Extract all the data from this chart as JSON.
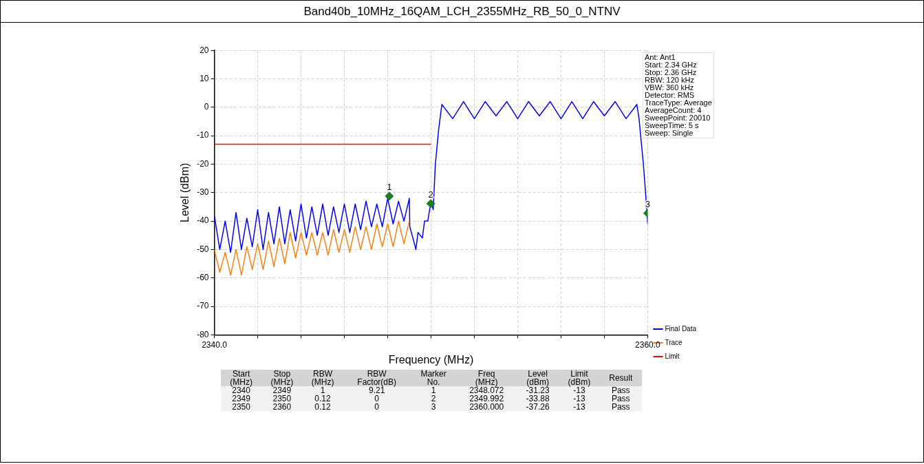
{
  "chart_data": {
    "type": "line",
    "title": "Band40b_10MHz_16QAM_LCH_2355MHz_RB_50_0_NTNV",
    "xlabel": "Frequency (MHz)",
    "ylabel": "Level (dBm)",
    "xlim": [
      2340,
      2360
    ],
    "xticks": [
      {
        "value": 2340,
        "label": "2340.0"
      },
      {
        "value": 2342,
        "label": null
      },
      {
        "value": 2344,
        "label": null
      },
      {
        "value": 2346,
        "label": null
      },
      {
        "value": 2348,
        "label": null
      },
      {
        "value": 2350,
        "label": null
      },
      {
        "value": 2352,
        "label": null
      },
      {
        "value": 2354,
        "label": null
      },
      {
        "value": 2356,
        "label": null
      },
      {
        "value": 2358,
        "label": null
      },
      {
        "value": 2360,
        "label": "2360.0"
      }
    ],
    "ylim": [
      -80,
      20
    ],
    "yticks": [
      -80,
      -70,
      -60,
      -50,
      -40,
      -30,
      -20,
      -10,
      0,
      10,
      20
    ],
    "grid": true,
    "legend": "bottom right",
    "series": [
      {
        "name": "Final Data",
        "color": "#0000ff",
        "marker": "none",
        "x": [
          2340,
          2340.25,
          2340.5,
          2340.75,
          2341,
          2341.25,
          2341.5,
          2341.75,
          2342,
          2342.25,
          2342.5,
          2342.75,
          2343,
          2343.25,
          2343.5,
          2343.75,
          2344,
          2344.25,
          2344.5,
          2344.75,
          2345,
          2345.25,
          2345.5,
          2345.75,
          2346,
          2346.25,
          2346.5,
          2346.75,
          2347,
          2347.25,
          2347.5,
          2347.75,
          2348,
          2348.25,
          2348.5,
          2348.75,
          2349,
          2349.02,
          2349.2,
          2349.3,
          2349.4,
          2349.6,
          2349.7,
          2349.85,
          2350,
          2350.1,
          2350.2,
          2350.35,
          2350.5,
          2351,
          2351.5,
          2352,
          2352.5,
          2353,
          2353.5,
          2354,
          2354.5,
          2355,
          2355.5,
          2356,
          2356.5,
          2357,
          2357.5,
          2358,
          2358.5,
          2359,
          2359.5,
          2359.6,
          2359.8,
          2359.9,
          2360
        ],
        "values": [
          -38,
          -50,
          -40,
          -51,
          -37,
          -50,
          -39,
          -49,
          -36,
          -50,
          -37,
          -48,
          -35,
          -48,
          -36,
          -47,
          -34,
          -46,
          -35,
          -45,
          -34,
          -45,
          -35,
          -44,
          -34,
          -44,
          -34,
          -43,
          -33,
          -42,
          -34,
          -42,
          -32,
          -41,
          -33,
          -40,
          -32,
          -42,
          -47,
          -50,
          -44,
          -46,
          -40,
          -40,
          -33,
          -36,
          -20,
          -8,
          1,
          -4,
          2,
          -4,
          2,
          -3,
          2,
          -4,
          2,
          -3,
          2,
          -4,
          2,
          -4,
          2,
          -3,
          2,
          -4,
          1,
          -4,
          -20,
          -30,
          -41
        ]
      },
      {
        "name": "Trace",
        "color": "#ff7f0e",
        "marker": "none",
        "x": [
          2340,
          2340.25,
          2340.5,
          2340.75,
          2341,
          2341.25,
          2341.5,
          2341.75,
          2342,
          2342.25,
          2342.5,
          2342.75,
          2343,
          2343.25,
          2343.5,
          2343.75,
          2344,
          2344.25,
          2344.5,
          2344.75,
          2345,
          2345.25,
          2345.5,
          2345.75,
          2346,
          2346.25,
          2346.5,
          2346.75,
          2347,
          2347.25,
          2347.5,
          2347.75,
          2348,
          2348.25,
          2348.5,
          2348.75,
          2349
        ],
        "values": [
          -50,
          -58,
          -51,
          -59,
          -50,
          -59,
          -49,
          -57,
          -48,
          -57,
          -47,
          -56,
          -46,
          -55,
          -44,
          -53,
          -44,
          -52,
          -44,
          -52,
          -44,
          -52,
          -43,
          -51,
          -43,
          -51,
          -42,
          -50,
          -42,
          -50,
          -41,
          -49,
          -41,
          -49,
          -40,
          -48,
          -40
        ]
      },
      {
        "name": "Limit",
        "color": "#ff0000",
        "marker": "none",
        "x": [
          2340,
          2350
        ],
        "values": [
          -13,
          -13
        ]
      },
      {
        "type": "scatter",
        "color": "#1e7b1e",
        "marker": "diamond",
        "x": [
          2348.072,
          2349.992,
          2360
        ],
        "values": [
          -31.23,
          -33.88,
          -37.26
        ]
      }
    ],
    "annotations": [
      {
        "text": "1",
        "x": 2348.072,
        "y": -31.23
      },
      {
        "text": "2",
        "x": 2349.992,
        "y": -33.88
      },
      {
        "text": "3",
        "x": 2360,
        "y": -37.26
      },
      "Ant: Ant1\nStart: 2.34 GHz\nStop: 2.36 GHz\nRBW: 120 kHz\nVBW: 360 kHz\nDetector: RMS\nTraceType: Average\nAverageCount: 4\nSweepPoint: 20010\nSweepTime: 5 s\nSweep: Single",
      "Start\n(MHz)\tStop\n(MHz)\tRBW\n(MHz)\tRBW\nFactor(dB)\tMarker\nNo.\tFreq\n(MHz)\tLevel\n(dBm)\tLimit\n(dBm)\tResult",
      "2340\t2349\t1\t9.21\t1\t2348.072\t-31.23\t-13\tPass",
      "2349\t2350\t0.12\t0\t2\t2349.992\t-33.88\t-13\tPass",
      "2350\t2360\t0.12\t0\t3\t2360.000\t-37.26\t-13\tPass"
    ]
  }
}
